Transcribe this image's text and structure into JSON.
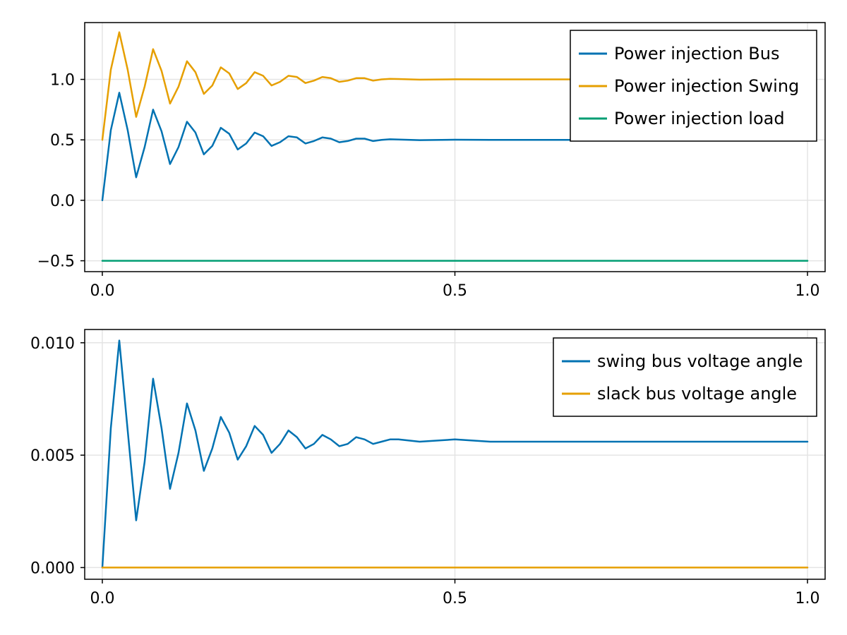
{
  "chart_data": [
    {
      "type": "line",
      "title": "",
      "xlabel": "",
      "ylabel": "",
      "xlim": [
        -0.025,
        1.025
      ],
      "ylim": [
        -0.59,
        1.47
      ],
      "x_ticks": [
        0.0,
        0.5,
        1.0
      ],
      "x_tick_labels": [
        "0.0",
        "0.5",
        "1.0"
      ],
      "y_ticks": [
        -0.5,
        0.0,
        0.5,
        1.0
      ],
      "y_tick_labels": [
        "−0.5",
        "0.0",
        "0.5",
        "1.0"
      ],
      "grid": true,
      "legend_position": "top-right",
      "x": [
        0.0,
        0.012,
        0.024,
        0.036,
        0.048,
        0.06,
        0.072,
        0.084,
        0.096,
        0.108,
        0.12,
        0.132,
        0.144,
        0.156,
        0.168,
        0.18,
        0.192,
        0.204,
        0.216,
        0.228,
        0.24,
        0.252,
        0.264,
        0.276,
        0.288,
        0.3,
        0.312,
        0.324,
        0.336,
        0.348,
        0.36,
        0.372,
        0.384,
        0.396,
        0.408,
        0.42,
        0.45,
        0.5,
        0.55,
        0.6,
        0.7,
        0.8,
        0.9,
        1.0
      ],
      "series": [
        {
          "name": "Power injection Bus",
          "color": "#0072b2",
          "values": [
            0.0,
            0.58,
            0.89,
            0.58,
            0.19,
            0.44,
            0.75,
            0.57,
            0.3,
            0.44,
            0.65,
            0.56,
            0.38,
            0.45,
            0.6,
            0.55,
            0.42,
            0.47,
            0.56,
            0.53,
            0.45,
            0.48,
            0.53,
            0.52,
            0.47,
            0.49,
            0.52,
            0.51,
            0.48,
            0.49,
            0.51,
            0.51,
            0.49,
            0.5,
            0.505,
            0.503,
            0.498,
            0.501,
            0.5,
            0.5,
            0.5,
            0.5,
            0.5,
            0.5
          ]
        },
        {
          "name": "Power injection Swing",
          "color": "#e69f00",
          "values": [
            0.5,
            1.08,
            1.39,
            1.08,
            0.69,
            0.94,
            1.25,
            1.07,
            0.8,
            0.94,
            1.15,
            1.06,
            0.88,
            0.95,
            1.1,
            1.05,
            0.92,
            0.97,
            1.06,
            1.03,
            0.95,
            0.98,
            1.03,
            1.02,
            0.97,
            0.99,
            1.02,
            1.01,
            0.98,
            0.99,
            1.01,
            1.01,
            0.99,
            1.0,
            1.005,
            1.003,
            0.998,
            1.001,
            1.0,
            1.0,
            1.0,
            1.0,
            1.0,
            1.0
          ]
        },
        {
          "name": "Power injection load",
          "color": "#009e73",
          "values": [
            -0.5,
            -0.5,
            -0.5,
            -0.5,
            -0.5,
            -0.5,
            -0.5,
            -0.5,
            -0.5,
            -0.5,
            -0.5,
            -0.5,
            -0.5,
            -0.5,
            -0.5,
            -0.5,
            -0.5,
            -0.5,
            -0.5,
            -0.5,
            -0.5,
            -0.5,
            -0.5,
            -0.5,
            -0.5,
            -0.5,
            -0.5,
            -0.5,
            -0.5,
            -0.5,
            -0.5,
            -0.5,
            -0.5,
            -0.5,
            -0.5,
            -0.5,
            -0.5,
            -0.5,
            -0.5,
            -0.5,
            -0.5,
            -0.5,
            -0.5,
            -0.5
          ]
        }
      ]
    },
    {
      "type": "line",
      "title": "",
      "xlabel": "",
      "ylabel": "",
      "xlim": [
        -0.025,
        1.025
      ],
      "ylim": [
        -0.00052,
        0.01059
      ],
      "x_ticks": [
        0.0,
        0.5,
        1.0
      ],
      "x_tick_labels": [
        "0.0",
        "0.5",
        "1.0"
      ],
      "y_ticks": [
        0.0,
        0.005,
        0.01
      ],
      "y_tick_labels": [
        "0.000",
        "0.005",
        "0.010"
      ],
      "grid": true,
      "legend_position": "top-right",
      "x": [
        0.0,
        0.012,
        0.024,
        0.036,
        0.048,
        0.06,
        0.072,
        0.084,
        0.096,
        0.108,
        0.12,
        0.132,
        0.144,
        0.156,
        0.168,
        0.18,
        0.192,
        0.204,
        0.216,
        0.228,
        0.24,
        0.252,
        0.264,
        0.276,
        0.288,
        0.3,
        0.312,
        0.324,
        0.336,
        0.348,
        0.36,
        0.372,
        0.384,
        0.396,
        0.408,
        0.42,
        0.45,
        0.5,
        0.55,
        0.6,
        0.7,
        0.8,
        0.9,
        1.0
      ],
      "series": [
        {
          "name": "swing bus voltage angle",
          "color": "#0072b2",
          "values": [
            0.0,
            0.0062,
            0.0101,
            0.0061,
            0.0021,
            0.0047,
            0.0084,
            0.0062,
            0.0035,
            0.0051,
            0.0073,
            0.0061,
            0.0043,
            0.0053,
            0.0067,
            0.006,
            0.0048,
            0.0054,
            0.0063,
            0.0059,
            0.0051,
            0.0055,
            0.0061,
            0.0058,
            0.0053,
            0.0055,
            0.0059,
            0.0057,
            0.0054,
            0.0055,
            0.0058,
            0.0057,
            0.0055,
            0.0056,
            0.0057,
            0.0057,
            0.0056,
            0.0057,
            0.0056,
            0.0056,
            0.0056,
            0.0056,
            0.0056,
            0.0056
          ]
        },
        {
          "name": "slack bus voltage angle",
          "color": "#e69f00",
          "values": [
            0.0,
            0.0,
            0.0,
            0.0,
            0.0,
            0.0,
            0.0,
            0.0,
            0.0,
            0.0,
            0.0,
            0.0,
            0.0,
            0.0,
            0.0,
            0.0,
            0.0,
            0.0,
            0.0,
            0.0,
            0.0,
            0.0,
            0.0,
            0.0,
            0.0,
            0.0,
            0.0,
            0.0,
            0.0,
            0.0,
            0.0,
            0.0,
            0.0,
            0.0,
            0.0,
            0.0,
            0.0,
            0.0,
            0.0,
            0.0,
            0.0,
            0.0,
            0.0,
            0.0
          ]
        }
      ]
    }
  ]
}
